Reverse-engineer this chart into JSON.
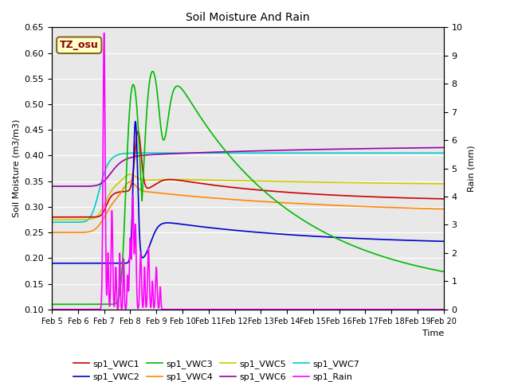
{
  "title": "Soil Moisture And Rain",
  "ylabel_left": "Soil Moisture (m3/m3)",
  "ylabel_right": "Rain (mm)",
  "xlabel": "Time",
  "annotation": "TZ_osu",
  "ylim_left": [
    0.1,
    0.65
  ],
  "ylim_right": [
    0.0,
    10.0
  ],
  "background_color": "#e8e8e8",
  "series_colors": {
    "sp1_VWC1": "#cc0000",
    "sp1_VWC2": "#0000cc",
    "sp1_VWC3": "#00bb00",
    "sp1_VWC4": "#ff8800",
    "sp1_VWC5": "#cccc00",
    "sp1_VWC6": "#9900aa",
    "sp1_VWC7": "#00cccc",
    "sp1_Rain": "#ff00ff"
  },
  "xtick_labels": [
    "Feb 5",
    "Feb 6",
    "Feb 7",
    "Feb 8",
    "Feb 9",
    "Feb 10",
    "Feb 11",
    "Feb 12",
    "Feb 13",
    "Feb 14",
    "Feb 15",
    "Feb 16",
    "Feb 17",
    "Feb 18",
    "Feb 19",
    "Feb 20"
  ],
  "yticks_left": [
    0.1,
    0.15,
    0.2,
    0.25,
    0.3,
    0.35,
    0.4,
    0.45,
    0.5,
    0.55,
    0.6,
    0.65
  ],
  "yticks_right": [
    0.0,
    1.0,
    2.0,
    3.0,
    4.0,
    5.0,
    6.0,
    7.0,
    8.0,
    9.0,
    10.0
  ]
}
